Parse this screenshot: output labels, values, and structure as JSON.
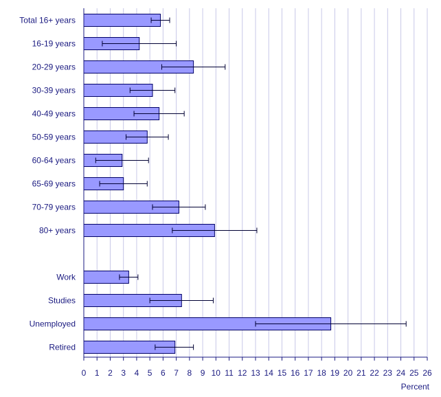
{
  "chart_data": {
    "type": "bar",
    "orientation": "horizontal",
    "title": "",
    "xlabel": "Percent",
    "ylabel": "",
    "xlim": [
      0,
      26
    ],
    "xticks": [
      "0",
      "1",
      "2",
      "3",
      "4",
      "5",
      "6",
      "7",
      "8",
      "9",
      "10",
      "11",
      "12",
      "13",
      "14",
      "15",
      "16",
      "17",
      "18",
      "19",
      "20",
      "21",
      "22",
      "23",
      "24",
      "25",
      "26"
    ],
    "grid": "vertical",
    "categories": [
      "Total 16+ years",
      "16-19 years",
      "20-29 years",
      "30-39 years",
      "40-49 years",
      "50-59 years",
      "60-64 years",
      "65-69 years",
      "70-79 years",
      "80+ years",
      "",
      "Work",
      "Studies",
      "Unemployed",
      "Retired"
    ],
    "values": [
      5.8,
      4.2,
      8.3,
      5.2,
      5.7,
      4.8,
      2.9,
      3.0,
      7.2,
      9.9,
      null,
      3.4,
      7.4,
      18.7,
      6.9
    ],
    "error_low": [
      5.1,
      1.4,
      5.9,
      3.5,
      3.8,
      3.2,
      0.9,
      1.2,
      5.2,
      6.7,
      null,
      2.7,
      5.0,
      13.0,
      5.4
    ],
    "error_high": [
      6.5,
      7.0,
      10.7,
      6.9,
      7.6,
      6.4,
      4.9,
      4.8,
      9.2,
      13.1,
      null,
      4.1,
      9.8,
      24.4,
      8.3
    ],
    "colors": {
      "bar_fill": "#9999ff",
      "bar_stroke": "#000066",
      "grid": "#c8c8e8",
      "axis": "#1a1a80",
      "text": "#1a1a80",
      "error": "#000033"
    }
  }
}
